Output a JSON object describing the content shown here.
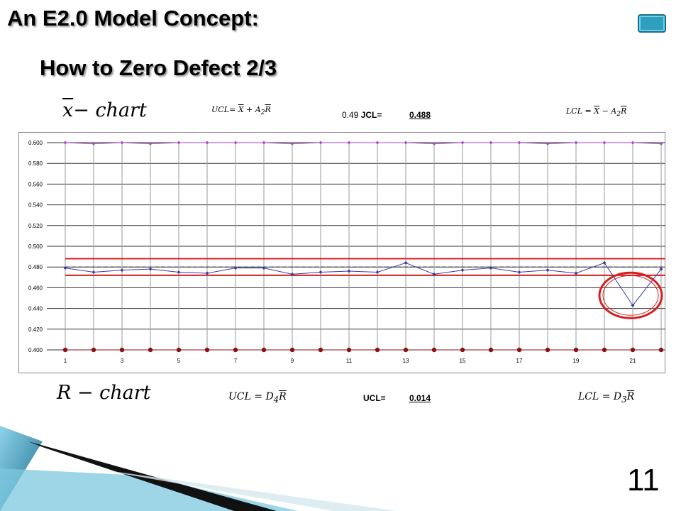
{
  "slide": {
    "title": "An E2.0 Model Concept:",
    "subtitle": "How to Zero Defect 2/3",
    "page_number": "11"
  },
  "formulas": {
    "xbar_chart_label_a": "x",
    "xbar_chart_label_b": "− chart",
    "xbar_ucl_a": "UCL= ",
    "xbar_ucl_b": "X",
    "xbar_ucl_c": " + A",
    "xbar_ucl_sub": "2",
    "xbar_ucl_d": "R",
    "xbar_lcl_a": "LCL  =  ",
    "xbar_lcl_b": "X",
    "xbar_lcl_c": "  −  A",
    "xbar_lcl_sub": "2",
    "xbar_lcl_d": "R",
    "r_chart_label": "R − chart",
    "r_ucl_a": "UCL   =  D",
    "r_ucl_sub": "4",
    "r_ucl_b": "R",
    "r_lcl_a": "LCL   =  D",
    "r_lcl_sub": "3",
    "r_lcl_b": "R"
  },
  "stats": {
    "xbar_ucl_prefix": "0.49",
    "xbar_ucl_label": "JCL=",
    "xbar_ucl_value": "0.488",
    "r_ucl_label": "UCL=",
    "r_ucl_value": "0.014"
  },
  "chart_data": {
    "type": "line",
    "x": [
      1,
      2,
      3,
      4,
      5,
      6,
      7,
      8,
      9,
      10,
      11,
      12,
      13,
      14,
      15,
      16,
      17,
      18,
      19,
      20,
      21,
      22
    ],
    "x_tick_labels": [
      "1",
      "3",
      "5",
      "7",
      "9",
      "11",
      "13",
      "15",
      "17",
      "19",
      "21"
    ],
    "ylim": [
      0.4,
      0.6
    ],
    "y_tick_labels": [
      "0.600",
      "0.580",
      "0.560",
      "0.540",
      "0.520",
      "0.500",
      "0.480",
      "0.460",
      "0.440",
      "0.420",
      "0.400"
    ],
    "series": [
      {
        "values": [
          0.479,
          0.475,
          0.477,
          0.478,
          0.475,
          0.474,
          0.479,
          0.479,
          0.473,
          0.475,
          0.476,
          0.475,
          0.484,
          0.473,
          0.477,
          0.479,
          0.475,
          0.477,
          0.474,
          0.484,
          0.443,
          0.478
        ]
      },
      {
        "values": [
          0.6,
          0.599,
          0.6,
          0.599,
          0.6,
          0.6,
          0.6,
          0.6,
          0.599,
          0.6,
          0.6,
          0.6,
          0.6,
          0.599,
          0.6,
          0.6,
          0.6,
          0.599,
          0.6,
          0.6,
          0.6,
          0.599
        ]
      },
      {
        "values": [
          0.4,
          0.4,
          0.4,
          0.4,
          0.4,
          0.4,
          0.4,
          0.4,
          0.4,
          0.4,
          0.4,
          0.4,
          0.4,
          0.4,
          0.4,
          0.4,
          0.4,
          0.4,
          0.4,
          0.4,
          0.4,
          0.4
        ]
      }
    ],
    "reference_lines": [
      0.488,
      0.48,
      0.472
    ],
    "highlight_point_index": 20,
    "grid": true,
    "colors": {
      "data_line": "#3a3aa8",
      "top_line": "#a64dcc",
      "bottom_points": "#8b1010",
      "control_limits": "#d42020",
      "center_line": "#555555",
      "highlight_circle": "#d42020",
      "grid": "#999999"
    }
  }
}
